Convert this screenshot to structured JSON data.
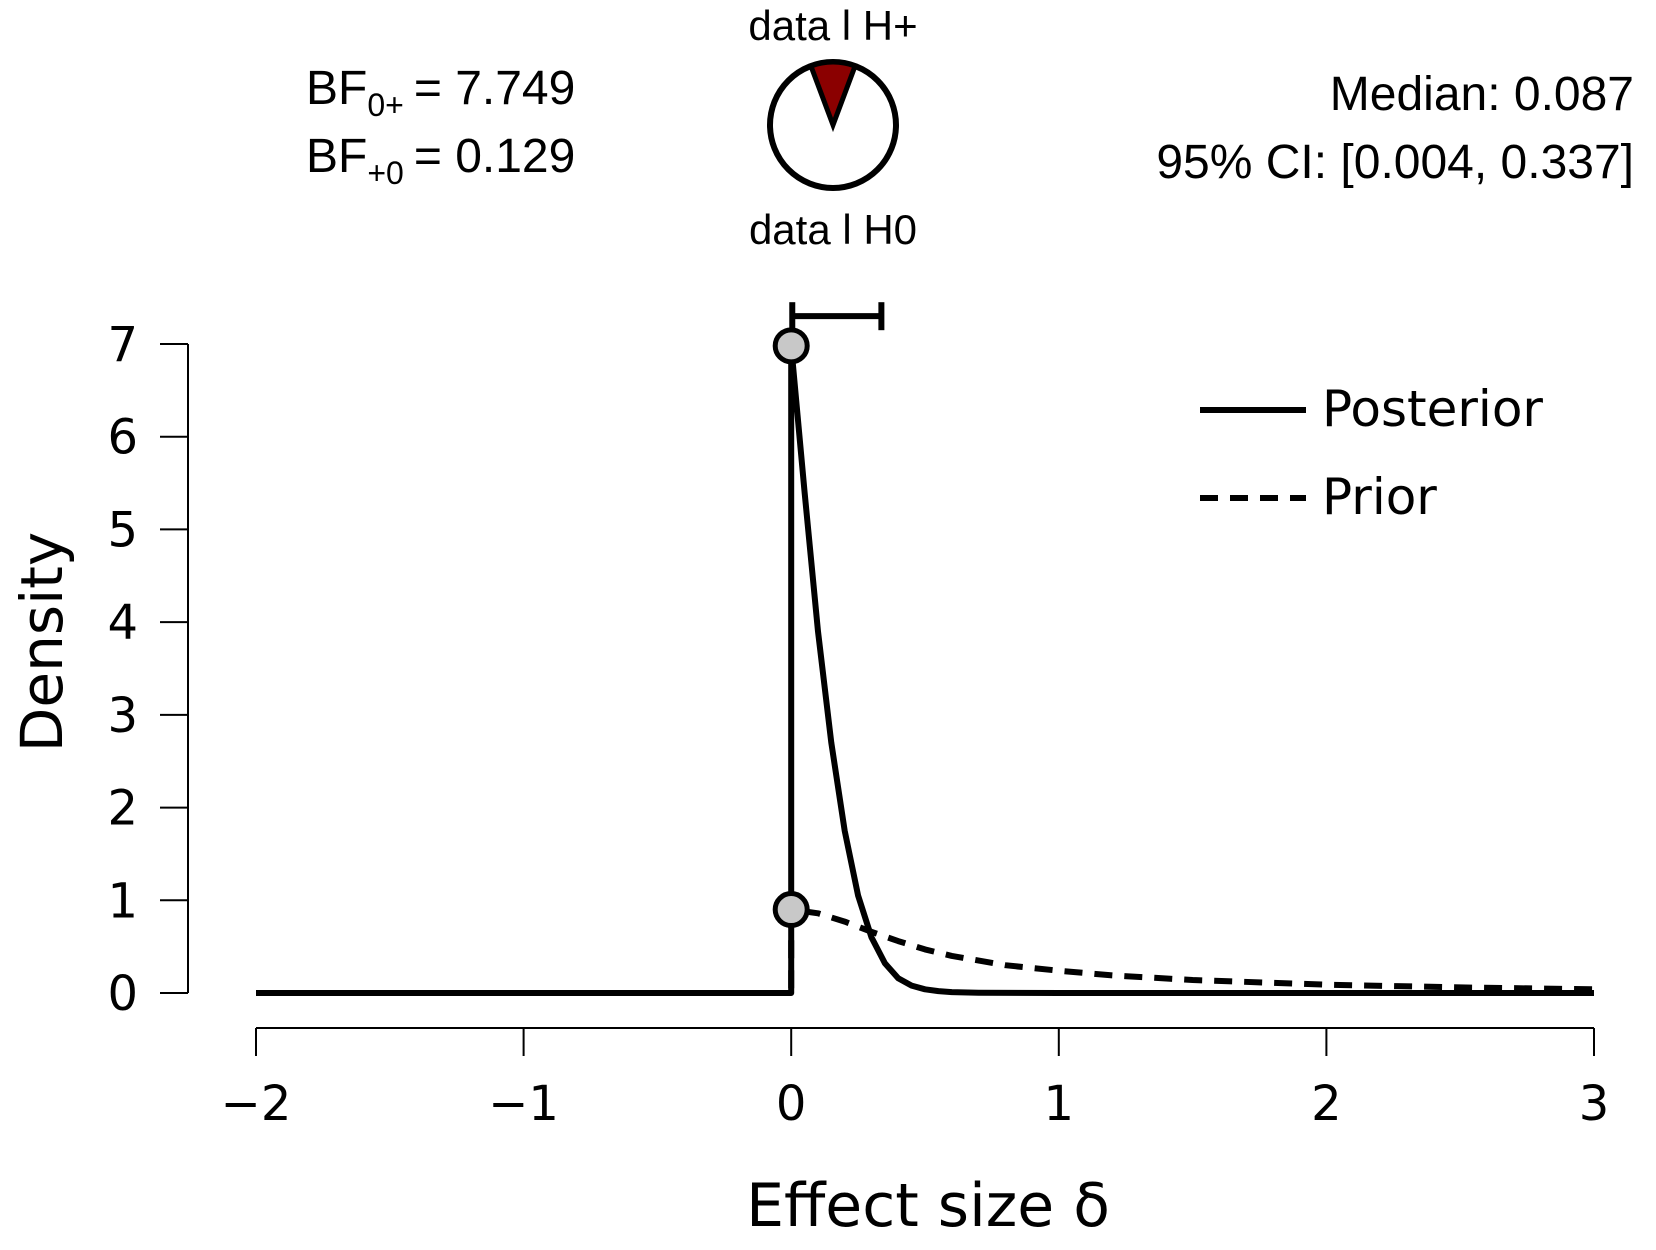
{
  "header": {
    "bf_lines": [
      {
        "base": "BF",
        "sub": "0+",
        "eq": "= 7.749"
      },
      {
        "base": "BF",
        "sub": "+0",
        "eq": "= 0.129"
      }
    ],
    "pie": {
      "top_label": "data l H+",
      "bottom_label": "data l H0",
      "h_plus_share": 0.114,
      "h_plus_color": "#8B0000",
      "h0_color": "#ffffff"
    },
    "median_text": "Median: 0.087",
    "ci_text": "95% CI: [0.004, 0.337]"
  },
  "chart_data": {
    "type": "line",
    "xlabel": "Effect size δ",
    "ylabel": "Density",
    "xlim": [
      -2,
      3
    ],
    "ylim": [
      0,
      7
    ],
    "x_ticks": [
      -2,
      -1,
      0,
      1,
      2,
      3
    ],
    "x_tick_labels": [
      "−2",
      "−1",
      "0",
      "1",
      "2",
      "3"
    ],
    "y_ticks": [
      0,
      1,
      2,
      3,
      4,
      5,
      6,
      7
    ],
    "y_tick_labels": [
      "0",
      "1",
      "2",
      "3",
      "4",
      "5",
      "6",
      "7"
    ],
    "grid": false,
    "legend_position": "top-right",
    "series": [
      {
        "name": "Posterior",
        "style": "solid",
        "x": [
          -2,
          0,
          0,
          0.05,
          0.1,
          0.15,
          0.2,
          0.25,
          0.3,
          0.35,
          0.4,
          0.45,
          0.5,
          0.55,
          0.6,
          0.7,
          1,
          1.5,
          2,
          2.5,
          3
        ],
        "y": [
          0,
          0,
          6.98,
          5.4,
          3.9,
          2.7,
          1.75,
          1.05,
          0.6,
          0.32,
          0.16,
          0.08,
          0.04,
          0.02,
          0.01,
          0.003,
          0,
          0,
          0,
          0,
          0
        ]
      },
      {
        "name": "Prior",
        "style": "dashed",
        "x": [
          -2,
          0,
          0,
          0.1,
          0.2,
          0.3,
          0.4,
          0.5,
          0.6,
          0.8,
          1,
          1.2,
          1.5,
          2,
          2.5,
          3
        ],
        "y": [
          0,
          0,
          0.9,
          0.86,
          0.77,
          0.66,
          0.56,
          0.47,
          0.4,
          0.3,
          0.24,
          0.19,
          0.14,
          0.09,
          0.06,
          0.04
        ]
      }
    ],
    "points": [
      {
        "x": 0,
        "y": 6.98
      },
      {
        "x": 0,
        "y": 0.9
      }
    ],
    "credible_interval": {
      "lower": 0.004,
      "upper": 0.337,
      "y": 7.3
    }
  }
}
